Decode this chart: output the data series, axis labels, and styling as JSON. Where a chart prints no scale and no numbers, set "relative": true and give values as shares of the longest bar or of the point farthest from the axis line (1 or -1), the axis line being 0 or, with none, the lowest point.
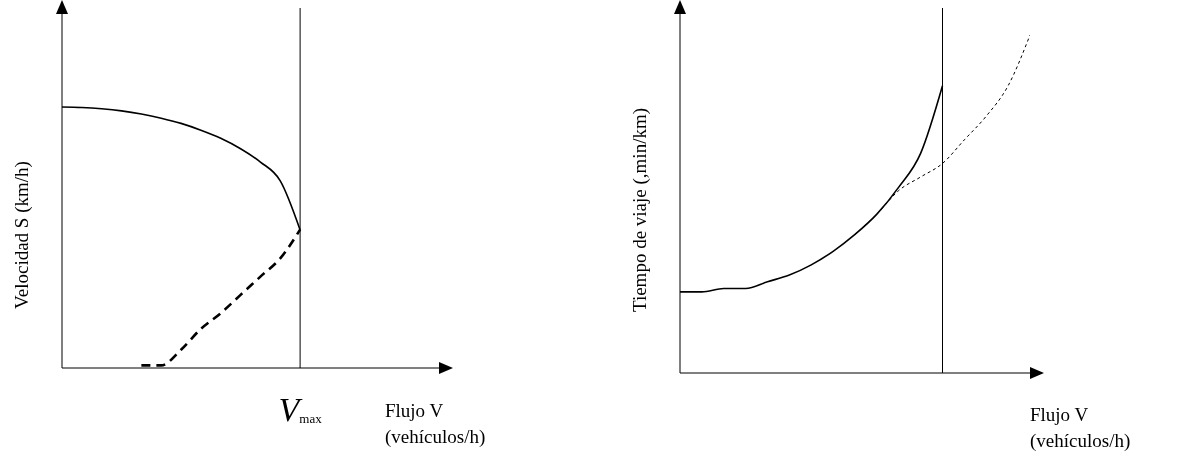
{
  "chart_data": [
    {
      "type": "line",
      "relative": true,
      "ylabel": "Velocidad S (km/h)",
      "xlabel": "Flujo V\n(vehículos/h)",
      "marker": "none",
      "grid": false,
      "legend": false,
      "categories": [
        null,
        null,
        null,
        null,
        null,
        null,
        null,
        null,
        null,
        null,
        null,
        null,
        null,
        null,
        null,
        null,
        null,
        null,
        null,
        null
      ],
      "annotations": [
        "V$_{max}$"
      ],
      "series": [
        {
          "color": "#000000",
          "line_style": "solid",
          "values": [
            1,
            0.998,
            0.993,
            0.985,
            0.973,
            0.957,
            0.937,
            0.911,
            0.88,
            0.84,
            0.789,
            0.717,
            0.529,
            null,
            null,
            null,
            null,
            null,
            null,
            null
          ]
        },
        {
          "color": "#000000",
          "line_style": "dashed",
          "values": [
            null,
            null,
            null,
            null,
            0.01,
            0.01,
            0.07,
            0.15,
            0.21,
            0.28,
            0.35,
            0.42,
            0.53,
            null,
            null,
            null,
            null,
            null,
            null,
            null
          ]
        }
      ]
    },
    {
      "type": "line",
      "relative": true,
      "ylabel": "Tiempo de viaje (,min/km)",
      "xlabel": "Flujo V\n(vehículos/h)",
      "marker": "none",
      "grid": false,
      "legend": false,
      "categories": [
        null,
        null,
        null,
        null,
        null,
        null,
        null,
        null,
        null,
        null,
        null,
        null,
        null,
        null,
        null,
        null,
        null
      ],
      "series": [
        {
          "color": "#000000",
          "line_style": "solid",
          "values": [
            0.24,
            0.24,
            0.25,
            0.25,
            0.27,
            0.29,
            0.32,
            0.36,
            0.41,
            0.47,
            0.55,
            0.65,
            0.85,
            null,
            null,
            null,
            null
          ]
        },
        {
          "color": "#000000",
          "line_style": "dotted",
          "values": [
            null,
            null,
            null,
            null,
            null,
            null,
            null,
            null,
            0.41,
            0.47,
            0.54,
            0.58,
            0.62,
            0.69,
            0.76,
            0.85,
            1
          ]
        }
      ]
    }
  ]
}
